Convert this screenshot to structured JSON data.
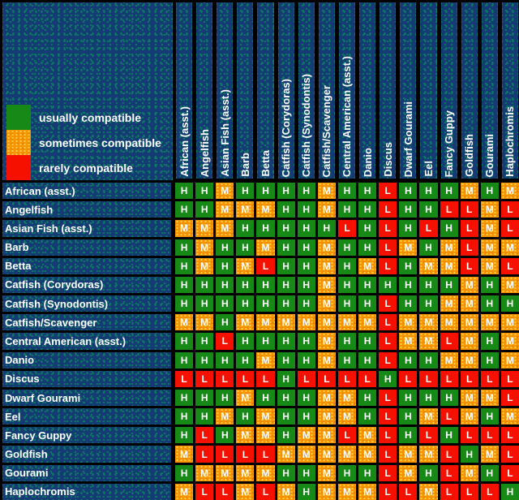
{
  "legend": {
    "items": [
      {
        "key": "H",
        "label": "usually compatible",
        "color": "#168916"
      },
      {
        "key": "M",
        "label": "sometimes compatible",
        "color": "#f79400"
      },
      {
        "key": "L",
        "label": "rarely compatible",
        "color": "#f51000"
      }
    ]
  },
  "colors": {
    "background_navy": "#143b73",
    "texture_dot": "#0d7a63",
    "grid_line": "#000000",
    "usually": "#168916",
    "sometimes": "#f79400",
    "sometimes_dither": "#ffd24d",
    "rarely": "#f51000",
    "text": "#ffffff"
  },
  "chart_data": {
    "type": "heatmap",
    "legend_position": "top-left",
    "x_categories": [
      "African (asst.)",
      "Angelfish",
      "Asian Fish (asst.)",
      "Barb",
      "Betta",
      "Catfish (Corydoras)",
      "Catfish (Synodontis)",
      "Catfish/Scavenger",
      "Central American (asst.)",
      "Danio",
      "Discus",
      "Dwarf Gourami",
      "Eel",
      "Fancy Guppy",
      "Goldfish",
      "Gourami",
      "Haplochromis"
    ],
    "y_categories": [
      "African (asst.)",
      "Angelfish",
      "Asian Fish (asst.)",
      "Barb",
      "Betta",
      "Catfish (Corydoras)",
      "Catfish (Synodontis)",
      "Catfish/Scavenger",
      "Central American (asst.)",
      "Danio",
      "Discus",
      "Dwarf Gourami",
      "Eel",
      "Fancy Guppy",
      "Goldfish",
      "Gourami",
      "Haplochromis"
    ],
    "value_meanings": {
      "H": "usually compatible",
      "M": "sometimes compatible",
      "L": "rarely compatible"
    },
    "values": [
      [
        "H",
        "H",
        "M",
        "H",
        "H",
        "H",
        "H",
        "M",
        "H",
        "H",
        "L",
        "H",
        "H",
        "H",
        "M",
        "H",
        "M"
      ],
      [
        "H",
        "H",
        "M",
        "M",
        "M",
        "H",
        "H",
        "M",
        "H",
        "H",
        "L",
        "H",
        "H",
        "L",
        "L",
        "M",
        "L"
      ],
      [
        "M",
        "M",
        "M",
        "H",
        "H",
        "H",
        "H",
        "H",
        "L",
        "H",
        "L",
        "H",
        "L",
        "H",
        "L",
        "M",
        "L"
      ],
      [
        "H",
        "M",
        "H",
        "H",
        "M",
        "H",
        "H",
        "M",
        "H",
        "H",
        "L",
        "M",
        "H",
        "M",
        "L",
        "M",
        "M"
      ],
      [
        "H",
        "M",
        "H",
        "M",
        "L",
        "H",
        "H",
        "M",
        "H",
        "M",
        "L",
        "H",
        "M",
        "M",
        "L",
        "M",
        "L"
      ],
      [
        "H",
        "H",
        "H",
        "H",
        "H",
        "H",
        "H",
        "M",
        "H",
        "H",
        "H",
        "H",
        "H",
        "H",
        "M",
        "H",
        "M"
      ],
      [
        "H",
        "H",
        "H",
        "H",
        "H",
        "H",
        "H",
        "M",
        "H",
        "H",
        "L",
        "H",
        "H",
        "M",
        "M",
        "H",
        "H"
      ],
      [
        "M",
        "M",
        "H",
        "M",
        "M",
        "M",
        "M",
        "M",
        "M",
        "M",
        "L",
        "M",
        "M",
        "M",
        "M",
        "M",
        "M"
      ],
      [
        "H",
        "H",
        "L",
        "H",
        "H",
        "H",
        "H",
        "M",
        "H",
        "H",
        "L",
        "M",
        "M",
        "L",
        "M",
        "H",
        "M"
      ],
      [
        "H",
        "H",
        "H",
        "H",
        "M",
        "H",
        "H",
        "M",
        "H",
        "H",
        "L",
        "H",
        "H",
        "M",
        "M",
        "H",
        "M"
      ],
      [
        "L",
        "L",
        "L",
        "L",
        "L",
        "H",
        "L",
        "L",
        "L",
        "L",
        "H",
        "L",
        "L",
        "L",
        "L",
        "L",
        "L"
      ],
      [
        "H",
        "H",
        "H",
        "M",
        "H",
        "H",
        "H",
        "M",
        "M",
        "H",
        "L",
        "H",
        "H",
        "H",
        "M",
        "M",
        "L"
      ],
      [
        "H",
        "H",
        "M",
        "H",
        "M",
        "H",
        "H",
        "M",
        "M",
        "H",
        "L",
        "H",
        "M",
        "L",
        "M",
        "H",
        "M"
      ],
      [
        "H",
        "L",
        "H",
        "M",
        "M",
        "H",
        "M",
        "M",
        "L",
        "M",
        "L",
        "H",
        "L",
        "H",
        "L",
        "L",
        "L"
      ],
      [
        "M",
        "L",
        "L",
        "L",
        "L",
        "M",
        "M",
        "M",
        "M",
        "M",
        "L",
        "M",
        "M",
        "L",
        "H",
        "M",
        "L"
      ],
      [
        "H",
        "M",
        "M",
        "M",
        "M",
        "H",
        "H",
        "M",
        "H",
        "H",
        "L",
        "M",
        "H",
        "L",
        "M",
        "H",
        "L"
      ],
      [
        "M",
        "L",
        "L",
        "M",
        "L",
        "M",
        "H",
        "M",
        "M",
        "M",
        "L",
        "L",
        "M",
        "L",
        "L",
        "L",
        "H"
      ]
    ]
  }
}
